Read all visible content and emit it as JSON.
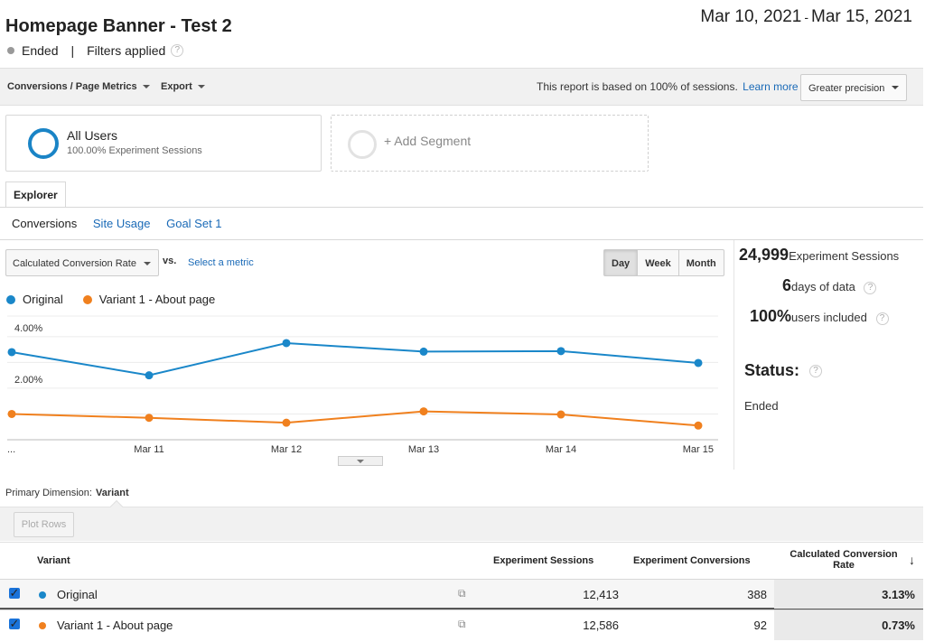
{
  "header": {
    "title": "Homepage Banner - Test 2",
    "date_start": "Mar 10, 2021",
    "date_sep": "-",
    "date_end": "Mar 15, 2021",
    "status": "Ended",
    "separator": "|",
    "filters": "Filters applied",
    "help_glyph": "?"
  },
  "toolbar": {
    "conversions_menu": "Conversions / Page Metrics",
    "export_menu": "Export",
    "report_note": "This report is based on 100% of sessions.",
    "learn_more": "Learn more",
    "precision": "Greater precision"
  },
  "segments": {
    "all_users": "All Users",
    "all_users_sub": "100.00% Experiment Sessions",
    "add_segment": "+ Add Segment"
  },
  "tabs": {
    "explorer": "Explorer",
    "subtabs": [
      "Conversions",
      "Site Usage",
      "Goal Set 1"
    ]
  },
  "chart_controls": {
    "metric": "Calculated Conversion Rate",
    "vs": "vs.",
    "select_metric": "Select a metric",
    "granularity": [
      "Day",
      "Week",
      "Month"
    ]
  },
  "colors": {
    "original": "#1a87c9",
    "variant": "#f0801e"
  },
  "chart_data": {
    "type": "line",
    "x": [
      "Mar 10",
      "Mar 11",
      "Mar 12",
      "Mar 13",
      "Mar 14",
      "Mar 15"
    ],
    "tick_labels": [
      "...",
      "Mar 11",
      "Mar 12",
      "Mar 13",
      "Mar 14",
      "Mar 15"
    ],
    "y_ticks": [
      "4.00%",
      "2.00%"
    ],
    "ylim": [
      0,
      4.8
    ],
    "series": [
      {
        "name": "Original",
        "values": [
          3.4,
          2.5,
          3.75,
          3.42,
          3.44,
          2.98
        ]
      },
      {
        "name": "Variant 1 - About page",
        "values": [
          1.0,
          0.85,
          0.66,
          1.1,
          0.98,
          0.55
        ]
      }
    ],
    "legend": "top-left",
    "grid": true
  },
  "stats": {
    "sessions_value": "24,999",
    "sessions_label": "Experiment Sessions",
    "days_value": "6",
    "days_label": "days of data",
    "users_value": "100%",
    "users_label": "users included",
    "status_label": "Status:",
    "status_value": "Ended"
  },
  "dimension": {
    "label": "Primary Dimension:",
    "value": "Variant",
    "plot_rows": "Plot Rows"
  },
  "table": {
    "headers": {
      "variant": "Variant",
      "sessions": "Experiment Sessions",
      "conversions": "Experiment Conversions",
      "rate_line1": "Calculated Conversion",
      "rate_line2": "Rate",
      "sort_glyph": "↓"
    },
    "rows": [
      {
        "name": "Original",
        "sessions": "12,413",
        "conversions": "388",
        "rate": "3.13%"
      },
      {
        "name": "Variant 1 - About page",
        "sessions": "12,586",
        "conversions": "92",
        "rate": "0.73%"
      }
    ]
  }
}
